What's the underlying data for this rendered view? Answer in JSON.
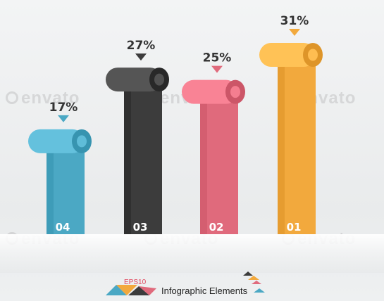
{
  "watermark": "envato",
  "footer": {
    "eps": "EPS10",
    "title": "Infographic Elements"
  },
  "colors": {
    "blue": "#4ba8c4",
    "black": "#3c3c3c",
    "pink": "#e06a7c",
    "orange": "#f2a93d"
  },
  "chart_data": {
    "type": "bar",
    "title": "",
    "categories": [
      "04",
      "03",
      "02",
      "01"
    ],
    "values": [
      17,
      27,
      25,
      31
    ],
    "value_labels": [
      "17%",
      "27%",
      "25%",
      "31%"
    ],
    "ylim": [
      0,
      31
    ],
    "grid": false,
    "legend": "none",
    "bar_colors": [
      "#4ba8c4",
      "#3c3c3c",
      "#e06a7c",
      "#f2a93d"
    ]
  }
}
